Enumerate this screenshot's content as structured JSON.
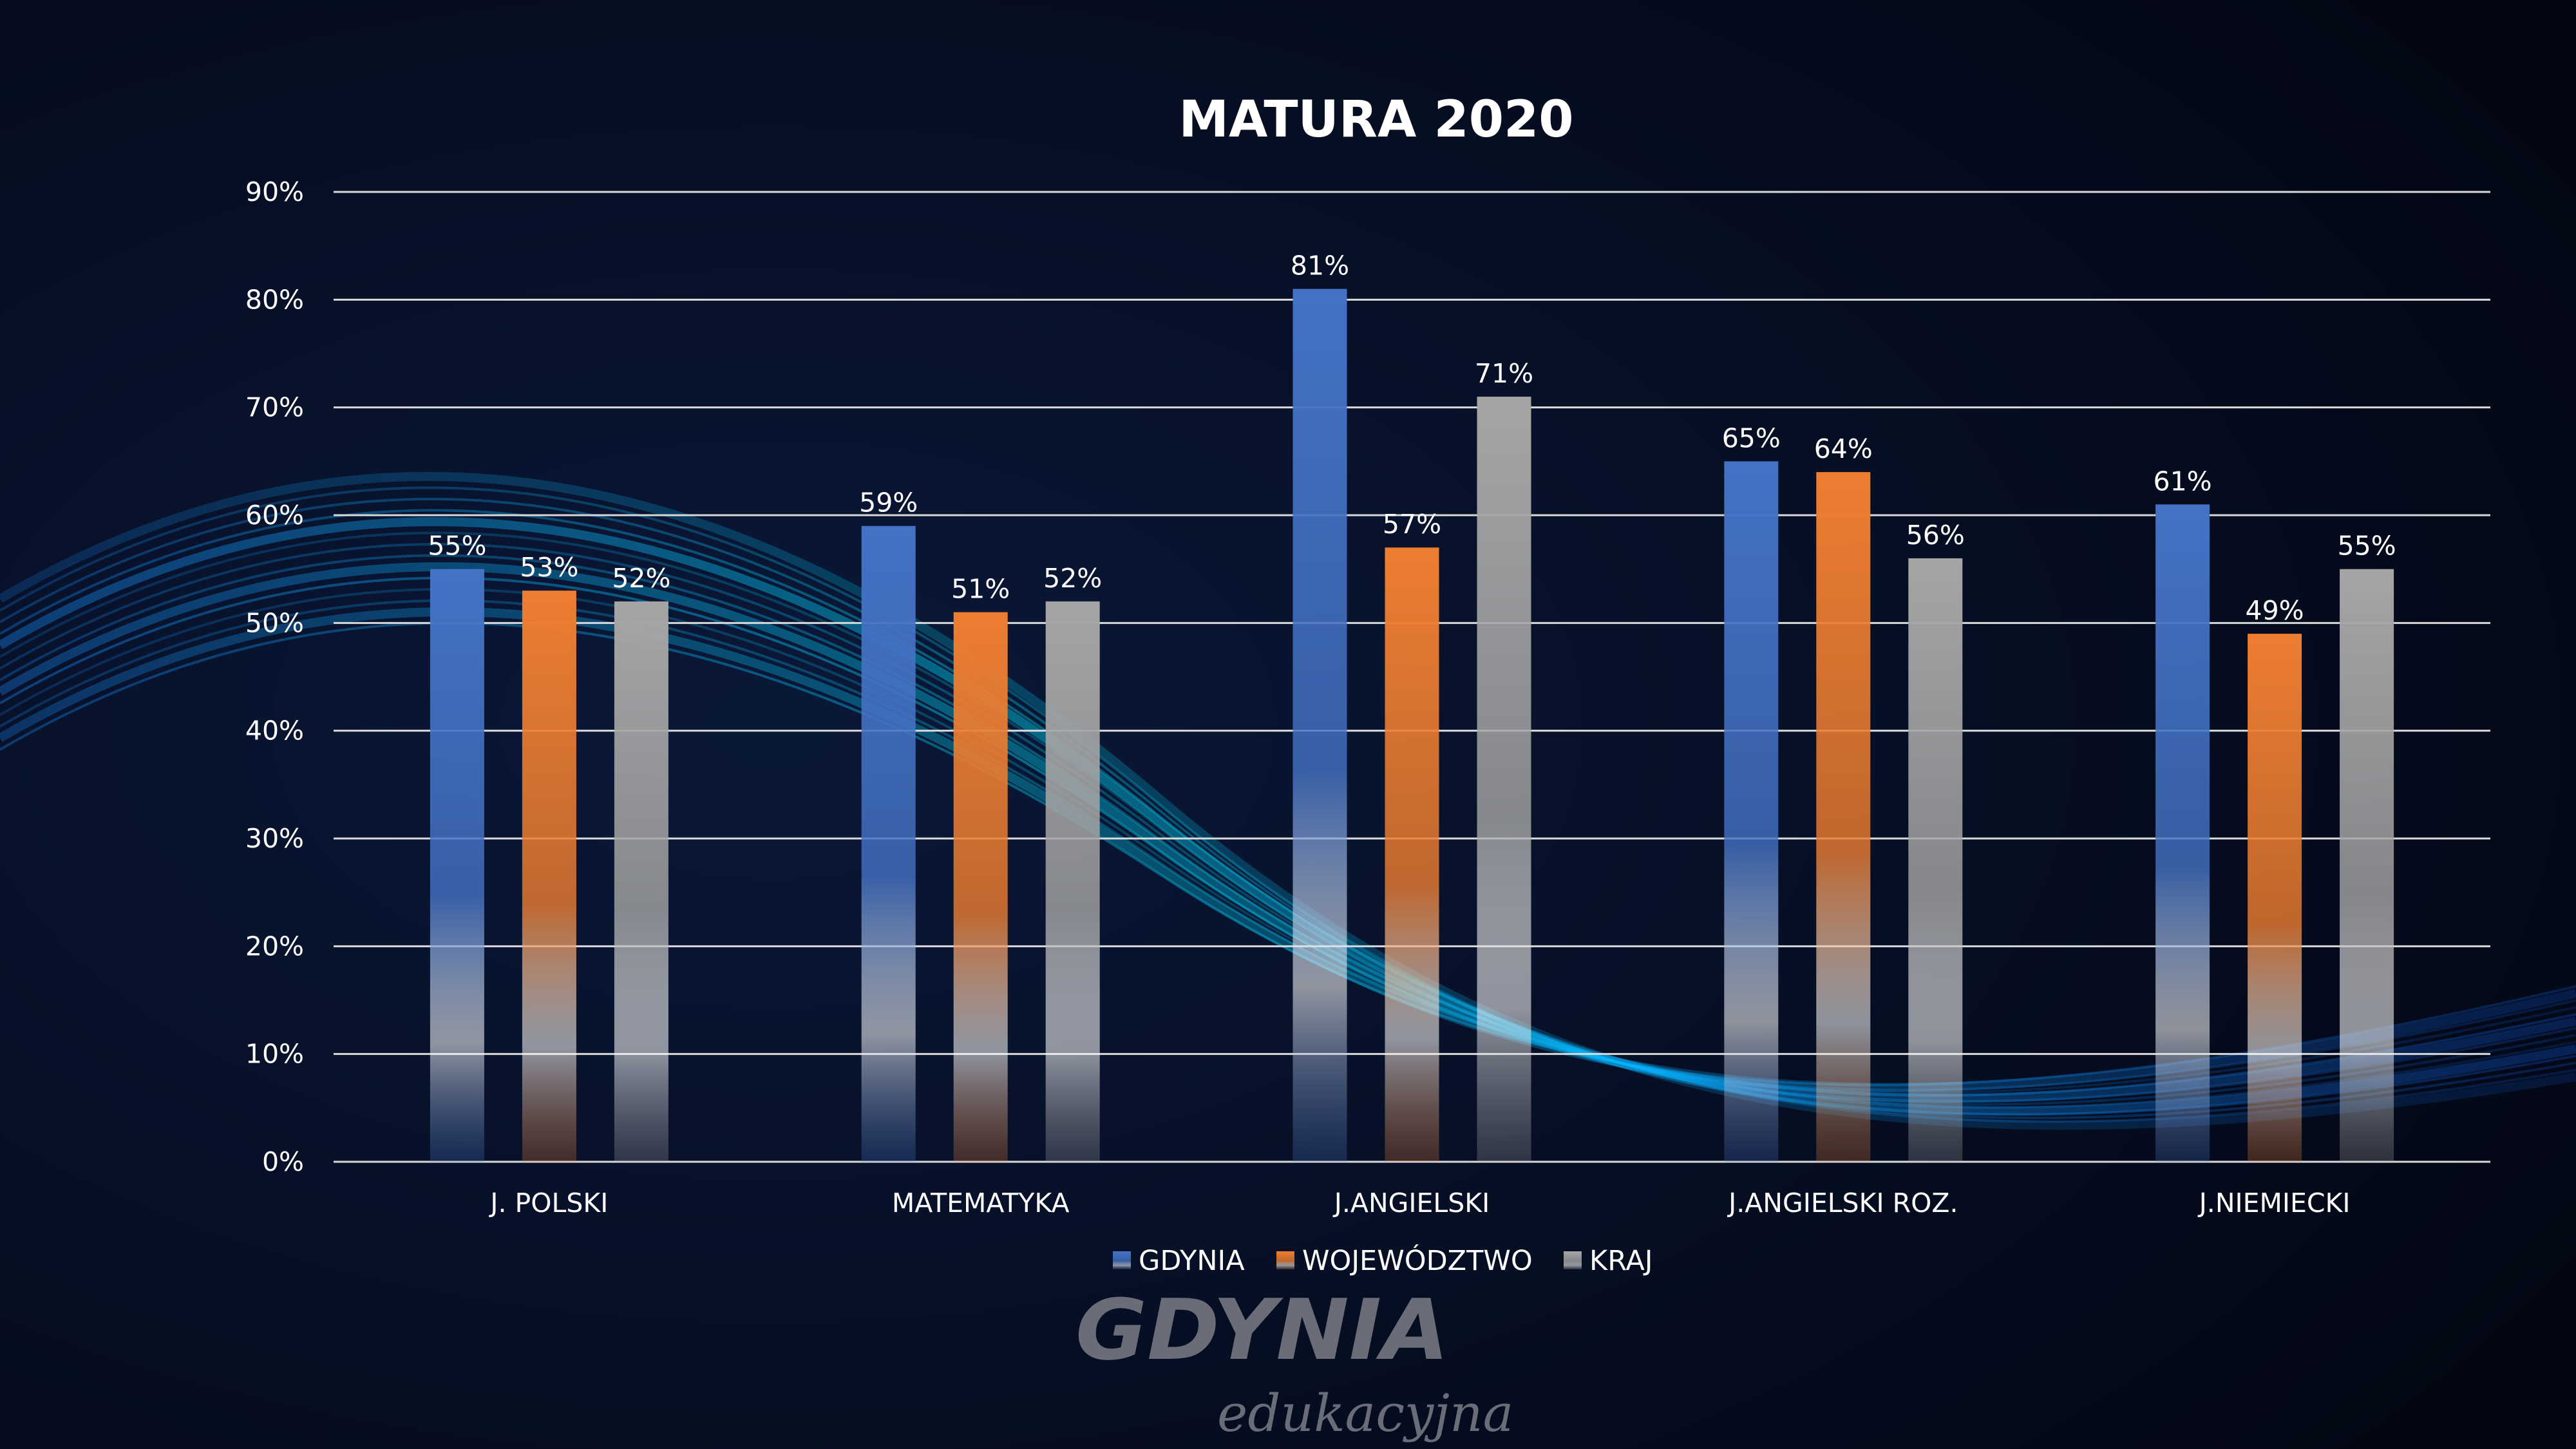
{
  "chart_data": {
    "type": "bar",
    "title": "MATURA 2020",
    "categories": [
      "J. POLSKI",
      "MATEMATYKA",
      "J.ANGIELSKI",
      "J.ANGIELSKI ROZ.",
      "J.NIEMIECKI"
    ],
    "series": [
      {
        "name": "GDYNIA",
        "values": [
          55,
          59,
          81,
          65,
          61
        ],
        "color": "#4472c4"
      },
      {
        "name": "WOJEWÓDZTWO",
        "values": [
          53,
          51,
          57,
          64,
          49
        ],
        "color": "#ed7d31"
      },
      {
        "name": "KRAJ",
        "values": [
          52,
          52,
          71,
          56,
          55
        ],
        "color": "#a5a5a5"
      }
    ],
    "data_labels": [
      [
        "55%",
        "59%",
        "81%",
        "65%",
        "61%"
      ],
      [
        "53%",
        "51%",
        "57%",
        "64%",
        "49%"
      ],
      [
        "52%",
        "52%",
        "71%",
        "56%",
        "55%"
      ]
    ],
    "yticks": [
      "0%",
      "10%",
      "20%",
      "30%",
      "40%",
      "50%",
      "60%",
      "70%",
      "80%",
      "90%"
    ],
    "ylim": [
      0,
      90
    ],
    "grid": true,
    "legend": "bottom"
  },
  "logo": {
    "main": "GDYNIA",
    "sub": "edukacyjna"
  }
}
